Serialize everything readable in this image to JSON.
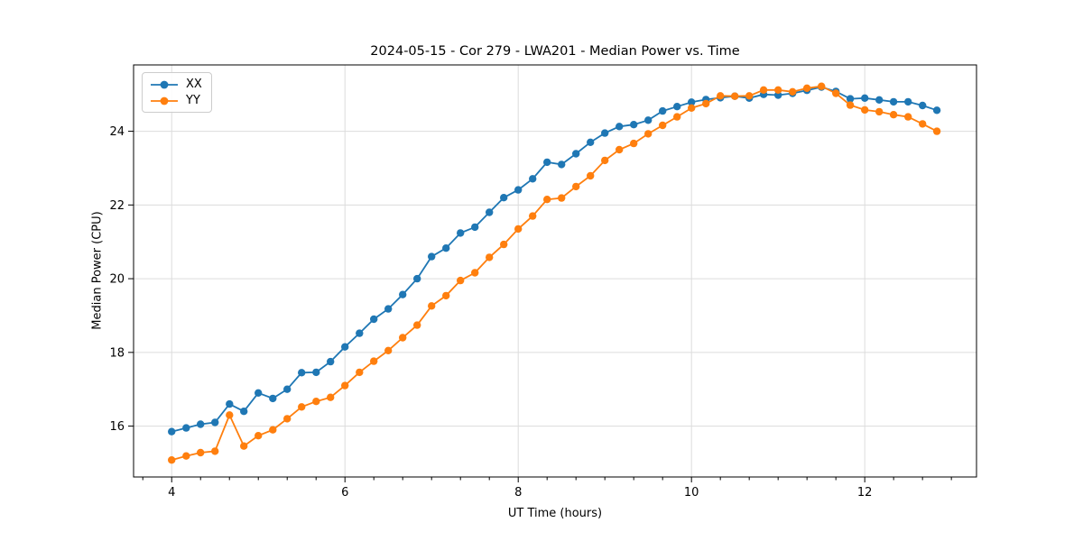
{
  "figure": {
    "title": "2024-05-15 - Cor 279 - LWA201 - Median Power vs. Time",
    "xlabel": "UT Time (hours)",
    "ylabel": "Median Power (CPU)"
  },
  "chart_data": {
    "type": "line",
    "title": "2024-05-15 - Cor 279 - LWA201 - Median Power vs. Time",
    "xlabel": "UT Time (hours)",
    "ylabel": "Median Power (CPU)",
    "xlim": [
      3.56,
      13.29
    ],
    "ylim": [
      14.62,
      25.8
    ],
    "xticks": [
      4,
      6,
      8,
      10,
      12
    ],
    "yticks": [
      16,
      18,
      20,
      22,
      24
    ],
    "x_minor_tick_step": 0.333,
    "grid": true,
    "legend_position": "upper-left",
    "marker": "circle",
    "x": [
      4.0,
      4.167,
      4.333,
      4.5,
      4.667,
      4.833,
      5.0,
      5.167,
      5.333,
      5.5,
      5.667,
      5.833,
      6.0,
      6.167,
      6.333,
      6.5,
      6.667,
      6.833,
      7.0,
      7.167,
      7.333,
      7.5,
      7.667,
      7.833,
      8.0,
      8.167,
      8.333,
      8.5,
      8.667,
      8.833,
      9.0,
      9.167,
      9.333,
      9.5,
      9.667,
      9.833,
      10.0,
      10.167,
      10.333,
      10.5,
      10.667,
      10.833,
      11.0,
      11.167,
      11.333,
      11.5,
      11.667,
      11.833,
      12.0,
      12.167,
      12.333,
      12.5,
      12.667,
      12.833
    ],
    "series": [
      {
        "name": "XX",
        "color": "#1f77b4",
        "values": [
          15.85,
          15.95,
          16.05,
          16.1,
          16.6,
          16.4,
          16.9,
          16.75,
          17.0,
          17.45,
          17.46,
          17.75,
          18.15,
          18.52,
          18.9,
          19.18,
          19.57,
          20.0,
          20.6,
          20.83,
          21.24,
          21.4,
          21.8,
          22.2,
          22.41,
          22.71,
          23.16,
          23.1,
          23.39,
          23.7,
          23.95,
          24.13,
          24.18,
          24.3,
          24.55,
          24.67,
          24.79,
          24.86,
          24.91,
          24.95,
          24.9,
          25.0,
          24.98,
          25.03,
          25.11,
          25.2,
          25.08,
          24.88,
          24.9,
          24.85,
          24.8,
          24.8,
          24.7,
          24.57
        ]
      },
      {
        "name": "YY",
        "color": "#ff7f0e",
        "values": [
          15.08,
          15.19,
          15.28,
          15.32,
          16.3,
          15.46,
          15.74,
          15.9,
          16.2,
          16.52,
          16.67,
          16.78,
          17.1,
          17.46,
          17.76,
          18.05,
          18.4,
          18.74,
          19.26,
          19.54,
          19.95,
          20.16,
          20.58,
          20.93,
          21.35,
          21.7,
          22.15,
          22.19,
          22.5,
          22.79,
          23.21,
          23.5,
          23.67,
          23.93,
          24.16,
          24.39,
          24.63,
          24.75,
          24.96,
          24.95,
          24.96,
          25.12,
          25.12,
          25.07,
          25.17,
          25.22,
          25.03,
          24.71,
          24.58,
          24.53,
          24.45,
          24.39,
          24.2,
          24.0
        ]
      }
    ]
  },
  "style": {
    "grid_color": "#dcdcdc",
    "spine_color": "#000000",
    "tick_color": "#000000"
  }
}
